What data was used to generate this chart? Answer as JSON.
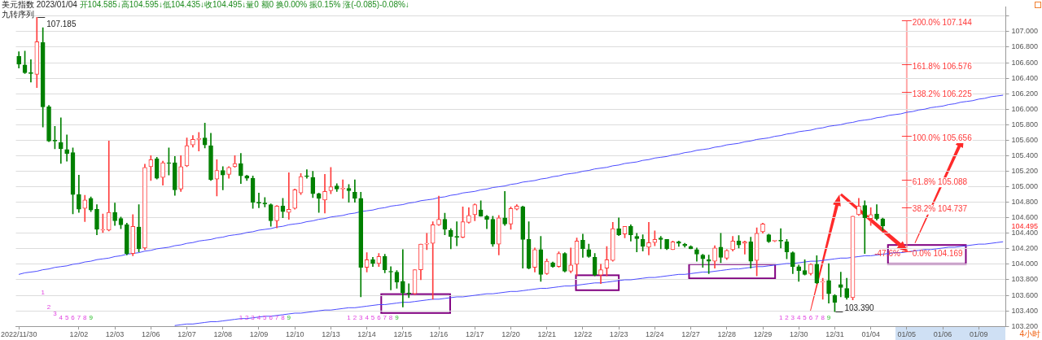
{
  "chart_data": {
    "type": "candlestick",
    "title": "美元指数 2023/01/04",
    "subtitle": "开104.585↓高104.595↓低104.435↓收104.495↓量0 额0 换0.00% 振0.15% 涨(-0.085)-0.08%↓",
    "annotations": [
      "九转序列",
      "4小时",
      "104.495",
      {
        "text": "-47.6%",
        "x": "01/05",
        "y": 104.169
      },
      "1",
      "2",
      "3",
      "4",
      "5",
      "6",
      "7",
      "8",
      "9",
      "1",
      "2",
      "3",
      "4",
      "5",
      "6",
      "7",
      "8",
      "9",
      "1",
      "2",
      "3",
      "4",
      "5",
      "6",
      "7",
      "8",
      "9",
      "1",
      "2",
      "3",
      "4",
      "5",
      "6",
      "7",
      "8",
      "9"
    ],
    "ref_lines": [
      {
        "axis": "y",
        "value": 107.144,
        "label": "200.0% 107.144",
        "color": "#ff3a3a"
      },
      {
        "axis": "y",
        "value": 106.576,
        "label": "161.8% 106.576",
        "color": "#ff3a3a"
      },
      {
        "axis": "y",
        "value": 106.225,
        "label": "138.2% 106.225",
        "color": "#ff3a3a"
      },
      {
        "axis": "y",
        "value": 105.656,
        "label": "100.0% 105.656",
        "color": "#ff3a3a"
      },
      {
        "axis": "y",
        "value": 105.088,
        "label": "61.8% 105.088",
        "color": "#ff3a3a"
      },
      {
        "axis": "y",
        "value": 104.737,
        "label": "38.2% 104.737",
        "color": "#ff3a3a"
      },
      {
        "axis": "y",
        "value": 104.169,
        "label": "0.0% 104.169",
        "color": "#ff3a3a"
      }
    ],
    "categories": [
      "2022/11/30",
      null,
      null,
      null,
      null,
      null,
      null,
      null,
      null,
      null,
      "12/02",
      null,
      null,
      null,
      null,
      null,
      "12/03",
      null,
      null,
      null,
      null,
      null,
      "12/06",
      null,
      null,
      null,
      null,
      null,
      "12/07",
      null,
      null,
      null,
      null,
      null,
      "12/08",
      null,
      null,
      null,
      null,
      null,
      "12/09",
      null,
      null,
      null,
      null,
      null,
      "12/10",
      null,
      null,
      null,
      null,
      null,
      "12/13",
      null,
      null,
      null,
      null,
      null,
      "12/14",
      null,
      null,
      null,
      null,
      null,
      "12/15",
      null,
      null,
      null,
      null,
      null,
      "12/16",
      null,
      null,
      null,
      null,
      null,
      "12/17",
      null,
      null,
      null,
      null,
      null,
      "12/20",
      null,
      null,
      null,
      null,
      null,
      "12/21",
      null,
      null,
      null,
      null,
      null,
      "12/22",
      null,
      null,
      null,
      null,
      null,
      "12/23",
      null,
      null,
      null,
      null,
      null,
      "12/24",
      null,
      null,
      null,
      null,
      null,
      "12/27",
      null,
      null,
      null,
      null,
      null,
      "12/28",
      null,
      null,
      null,
      null,
      null,
      "12/29",
      null,
      null,
      null,
      null,
      null,
      "12/30",
      null,
      null,
      null,
      null,
      null,
      "12/31",
      null,
      null,
      null,
      null,
      null,
      "01/04",
      null,
      null,
      null,
      null,
      null,
      "01/05",
      null,
      null,
      null,
      null,
      null,
      "01/06",
      null,
      null,
      null,
      null,
      null,
      "01/09",
      null,
      null,
      null,
      null
    ],
    "ohlc": [
      [
        106.68,
        106.74,
        106.53,
        106.58
      ],
      [
        106.57,
        106.75,
        106.46,
        106.47
      ],
      [
        106.47,
        106.64,
        106.35,
        106.46
      ],
      [
        106.45,
        107.185,
        106.28,
        106.87
      ],
      [
        106.86,
        107.05,
        105.77,
        106.03
      ],
      [
        106.03,
        106.05,
        105.58,
        105.59
      ],
      [
        105.6,
        105.78,
        105.49,
        105.59
      ],
      [
        105.57,
        105.89,
        105.3,
        105.49
      ],
      [
        105.48,
        105.67,
        105.33,
        105.43
      ],
      [
        105.44,
        105.5,
        104.65,
        104.9
      ],
      [
        104.9,
        105.15,
        104.67,
        104.71
      ],
      [
        104.72,
        104.89,
        104.55,
        104.83
      ],
      [
        104.85,
        104.87,
        104.68,
        104.7
      ],
      [
        104.71,
        104.77,
        104.38,
        104.45
      ],
      [
        104.44,
        104.65,
        104.41,
        104.45
      ],
      [
        104.44,
        105.59,
        104.43,
        104.67
      ],
      [
        104.67,
        104.79,
        104.5,
        104.56
      ],
      [
        104.59,
        104.61,
        104.46,
        104.51
      ],
      [
        104.51,
        104.53,
        104.12,
        104.14
      ],
      [
        104.14,
        104.64,
        104.11,
        104.49
      ],
      [
        104.48,
        104.77,
        104.16,
        104.2
      ],
      [
        104.21,
        105.29,
        104.19,
        105.25
      ],
      [
        105.26,
        105.4,
        105.08,
        105.35
      ],
      [
        105.36,
        105.38,
        105.1,
        105.11
      ],
      [
        105.12,
        105.33,
        105.02,
        105.31
      ],
      [
        105.31,
        105.5,
        105.15,
        105.3
      ],
      [
        105.31,
        105.39,
        104.89,
        104.96
      ],
      [
        104.97,
        105.4,
        104.94,
        105.26
      ],
      [
        105.27,
        105.63,
        105.26,
        105.53
      ],
      [
        105.54,
        105.66,
        105.51,
        105.61
      ],
      [
        105.61,
        105.7,
        105.46,
        105.62
      ],
      [
        105.63,
        105.82,
        105.5,
        105.54
      ],
      [
        105.53,
        105.69,
        105.08,
        105.09
      ],
      [
        105.1,
        105.35,
        104.88,
        105.21
      ],
      [
        105.21,
        105.26,
        104.96,
        105.15
      ],
      [
        105.16,
        105.26,
        105.11,
        105.25
      ],
      [
        105.26,
        105.4,
        105.25,
        105.3
      ],
      [
        105.3,
        105.43,
        105.04,
        105.14
      ],
      [
        105.14,
        105.15,
        105.08,
        105.11
      ],
      [
        105.11,
        105.14,
        104.72,
        104.8
      ],
      [
        104.8,
        104.92,
        104.73,
        104.79
      ],
      [
        104.79,
        104.86,
        104.74,
        104.78
      ],
      [
        104.77,
        104.78,
        104.49,
        104.56
      ],
      [
        104.56,
        104.76,
        104.47,
        104.75
      ],
      [
        104.75,
        104.85,
        104.6,
        104.68
      ],
      [
        104.67,
        105.18,
        104.58,
        104.71
      ],
      [
        104.72,
        104.97,
        104.71,
        104.96
      ],
      [
        104.92,
        105.17,
        104.9,
        105.13
      ],
      [
        105.14,
        105.22,
        105.11,
        105.13
      ],
      [
        105.12,
        105.2,
        104.86,
        104.91
      ],
      [
        104.91,
        104.92,
        104.67,
        104.85
      ],
      [
        104.83,
        105.16,
        104.66,
        104.94
      ],
      [
        104.95,
        105.25,
        104.91,
        105
      ],
      [
        105.01,
        105.04,
        104.94,
        104.97
      ],
      [
        104.97,
        105.09,
        104.85,
        104.98
      ],
      [
        104.98,
        105.03,
        104.8,
        104.95
      ],
      [
        104.93,
        105.09,
        104.8,
        104.85
      ],
      [
        104.85,
        104.93,
        103.58,
        103.96
      ],
      [
        103.96,
        104.15,
        103.9,
        104.06
      ],
      [
        104.06,
        104.09,
        103.97,
        104.01
      ],
      [
        104.01,
        104.14,
        103.97,
        104.1
      ],
      [
        104.1,
        104.13,
        103.89,
        103.93
      ],
      [
        103.91,
        103.97,
        103.67,
        103.9
      ],
      [
        103.9,
        103.92,
        103.69,
        103.77
      ],
      [
        103.78,
        104.19,
        103.45,
        103.63
      ],
      [
        103.63,
        103.75,
        103.57,
        103.62
      ],
      [
        103.62,
        103.93,
        103.61,
        103.93
      ],
      [
        103.93,
        104.26,
        103.8,
        104.26
      ],
      [
        104.26,
        104.4,
        104.19,
        104.27
      ],
      [
        104.27,
        104.55,
        103.55,
        104.51
      ],
      [
        104.51,
        104.88,
        104.5,
        104.58
      ],
      [
        104.58,
        104.66,
        104.38,
        104.45
      ],
      [
        104.44,
        104.46,
        104.2,
        104.36
      ],
      [
        104.36,
        104.55,
        104.24,
        104.35
      ],
      [
        104.35,
        104.74,
        104.34,
        104.55
      ],
      [
        104.54,
        104.73,
        104.53,
        104.63
      ],
      [
        104.64,
        104.78,
        104.56,
        104.77
      ],
      [
        104.7,
        104.82,
        104.62,
        104.62
      ],
      [
        104.62,
        104.63,
        104.46,
        104.58
      ],
      [
        104.58,
        104.62,
        104.23,
        104.26
      ],
      [
        104.26,
        104.63,
        104.12,
        104.6
      ],
      [
        104.6,
        104.94,
        104.5,
        104.52
      ],
      [
        104.52,
        104.74,
        104.45,
        104.72
      ],
      [
        104.71,
        104.77,
        104.7,
        104.75
      ],
      [
        104.74,
        104.75,
        103.95,
        104.32
      ],
      [
        104.32,
        104.55,
        103.94,
        103.95
      ],
      [
        103.96,
        104.21,
        103.9,
        104.19
      ],
      [
        104.19,
        104.36,
        103.78,
        103.87
      ],
      [
        103.88,
        104.07,
        103.87,
        104.04
      ],
      [
        104.02,
        104.03,
        103.96,
        103.97
      ],
      [
        103.97,
        104.16,
        103.96,
        104.14
      ],
      [
        104.14,
        104.15,
        103.9,
        103.91
      ],
      [
        103.91,
        104.21,
        103.89,
        103.99
      ],
      [
        104,
        104.34,
        103.85,
        104.3
      ],
      [
        104.31,
        104.39,
        104.09,
        104.2
      ],
      [
        104.19,
        104.26,
        104.09,
        104.1
      ],
      [
        104.09,
        104.14,
        103.85,
        103.86
      ],
      [
        103.86,
        104,
        103.75,
        103.93
      ],
      [
        103.95,
        104.23,
        103.85,
        104.06
      ],
      [
        104.05,
        104.54,
        104.04,
        104.46
      ],
      [
        104.46,
        104.6,
        104.37,
        104.38
      ],
      [
        104.39,
        104.49,
        104.34,
        104.49
      ],
      [
        104.49,
        104.51,
        104.3,
        104.38
      ],
      [
        104.36,
        104.4,
        104.16,
        104.33
      ],
      [
        104.32,
        104.38,
        104.17,
        104.23
      ],
      [
        104.22,
        104.54,
        104.12,
        104.28
      ],
      [
        104.28,
        104.43,
        104.24,
        104.32
      ],
      [
        104.34,
        104.36,
        104.2,
        104.32
      ],
      [
        104.32,
        104.32,
        104.19,
        104.2
      ],
      [
        104.19,
        104.3,
        104.19,
        104.29
      ],
      [
        104.29,
        104.3,
        104.23,
        104.27
      ],
      [
        104.26,
        104.27,
        104.22,
        104.24
      ],
      [
        104.23,
        104.24,
        104.2,
        104.2
      ],
      [
        104.19,
        104.21,
        104.04,
        104.13
      ],
      [
        104.12,
        104.13,
        103.96,
        104.07
      ],
      [
        104.06,
        104.12,
        103.88,
        104.04
      ],
      [
        104.04,
        104.24,
        103.95,
        104.21
      ],
      [
        104.22,
        104.4,
        104.02,
        104.09
      ],
      [
        104.08,
        104.19,
        104.06,
        104.18
      ],
      [
        104.19,
        104.36,
        104.17,
        104.3
      ],
      [
        104.3,
        104.37,
        104.21,
        104.25
      ],
      [
        104.27,
        104.3,
        104.13,
        104.29
      ],
      [
        104.29,
        104.35,
        103.95,
        104.04
      ],
      [
        104.05,
        104.47,
        103.85,
        104.4
      ],
      [
        104.42,
        104.53,
        104.4,
        104.52
      ],
      [
        104.38,
        104.39,
        104.28,
        104.29
      ],
      [
        104.3,
        104.31,
        104.29,
        104.31
      ],
      [
        104.31,
        104.46,
        104.21,
        104.3
      ],
      [
        104.29,
        104.32,
        104.07,
        104.16
      ],
      [
        104.15,
        104.16,
        103.88,
        103.97
      ],
      [
        103.97,
        103.99,
        103.78,
        103.92
      ],
      [
        103.92,
        104.06,
        103.86,
        103.87
      ],
      [
        103.88,
        104.01,
        103.86,
        104
      ],
      [
        104,
        104.11,
        103.75,
        103.76
      ],
      [
        103.77,
        103.82,
        103.55,
        103.78
      ],
      [
        103.79,
        104.01,
        103.5,
        103.62
      ],
      [
        103.6,
        103.61,
        103.39,
        103.51
      ],
      [
        103.74,
        103.9,
        103.58,
        103.7
      ],
      [
        103.69,
        103.82,
        103.55,
        103.57
      ],
      [
        103.57,
        104.62,
        103.54,
        104.62
      ],
      [
        104.64,
        104.85,
        104.63,
        104.75
      ],
      [
        104.76,
        104.82,
        104.14,
        104.6
      ],
      [
        104.59,
        104.73,
        104.5,
        104.64
      ],
      [
        104.65,
        104.77,
        104.57,
        104.59
      ],
      [
        104.585,
        104.595,
        104.435,
        104.495
      ],
      null,
      null,
      null,
      null,
      null,
      null,
      null,
      null,
      null,
      null,
      null,
      null,
      null,
      null,
      null,
      null,
      null,
      null,
      null,
      null
    ],
    "colors": [
      "#008000",
      "#008000",
      "#008000",
      "#ff3c3c",
      "#008000",
      "#008000",
      "#008000",
      "#008000",
      "#008000",
      "#008000",
      "#008000",
      "#ff3c3c",
      "#008000",
      "#008000",
      "#ff3c3c",
      "#ff3c3c",
      "#008000",
      "#008000",
      "#008000",
      "#ff3c3c",
      "#008000",
      "#ff3c3c",
      "#ff3c3c",
      "#008000",
      "#ff3c3c",
      "#008000",
      "#008000",
      "#ff3c3c",
      "#ff3c3c",
      "#ff3c3c",
      "#ff3c3c",
      "#008000",
      "#008000",
      "#ff3c3c",
      "#008000",
      "#ff3c3c",
      "#ff3c3c",
      "#008000",
      "#008000",
      "#008000",
      "#008000",
      "#008000",
      "#008000",
      "#ff3c3c",
      "#008000",
      "#ff3c3c",
      "#ff3c3c",
      "#ff3c3c",
      "#008000",
      "#008000",
      "#008000",
      "#ff3c3c",
      "#ff3c3c",
      "#008000",
      "#ff3c3c",
      "#008000",
      "#008000",
      "#008000",
      "#ff3c3c",
      "#008000",
      "#ff3c3c",
      "#008000",
      "#008000",
      "#008000",
      "#008000",
      "#008000",
      "#ff3c3c",
      "#ff3c3c",
      "#ff3c3c",
      "#ff3c3c",
      "#ff3c3c",
      "#008000",
      "#008000",
      "#008000",
      "#ff3c3c",
      "#ff3c3c",
      "#ff3c3c",
      "#008000",
      "#008000",
      "#008000",
      "#ff3c3c",
      "#008000",
      "#ff3c3c",
      "#ff3c3c",
      "#008000",
      "#008000",
      "#ff3c3c",
      "#008000",
      "#ff3c3c",
      "#008000",
      "#ff3c3c",
      "#008000",
      "#ff3c3c",
      "#ff3c3c",
      "#008000",
      "#008000",
      "#008000",
      "#ff3c3c",
      "#ff3c3c",
      "#ff3c3c",
      "#008000",
      "#ff3c3c",
      "#008000",
      "#008000",
      "#008000",
      "#ff3c3c",
      "#ff3c3c",
      "#008000",
      "#008000",
      "#ff3c3c",
      "#008000",
      "#008000",
      "#008000",
      "#008000",
      "#008000",
      "#008000",
      "#ff3c3c",
      "#008000",
      "#ff3c3c",
      "#ff3c3c",
      "#008000",
      "#ff3c3c",
      "#008000",
      "#ff3c3c",
      "#ff3c3c",
      "#008000",
      "#ff3c3c",
      "#008000",
      "#008000",
      "#008000",
      "#008000",
      "#008000",
      "#ff3c3c",
      "#008000",
      "#ff3c3c",
      "#008000",
      "#008000",
      "#008000",
      "#008000",
      "#ff3c3c",
      "#ff3c3c",
      "#008000",
      "#ff3c3c",
      "#008000",
      "#008000",
      null,
      null,
      null,
      null,
      null,
      null,
      null,
      null,
      null,
      null,
      null,
      null,
      null,
      null,
      null,
      null,
      null,
      null,
      null,
      null
    ],
    "value_labels": [
      null,
      null,
      null,
      "107.185",
      null,
      null,
      null,
      null,
      null,
      null,
      null,
      null,
      null,
      null,
      null,
      null,
      null,
      null,
      null,
      null,
      null,
      null,
      null,
      null,
      null,
      null,
      null,
      null,
      null,
      null,
      null,
      null,
      null,
      null,
      null,
      null,
      null,
      null,
      null,
      null,
      null,
      null,
      null,
      null,
      null,
      null,
      null,
      null,
      null,
      null,
      null,
      null,
      null,
      null,
      null,
      null,
      null,
      null,
      null,
      null,
      null,
      null,
      null,
      null,
      null,
      null,
      null,
      null,
      null,
      null,
      null,
      null,
      null,
      null,
      null,
      null,
      null,
      null,
      null,
      null,
      null,
      null,
      null,
      null,
      null,
      null,
      null,
      null,
      null,
      null,
      null,
      null,
      null,
      null,
      null,
      null,
      null,
      null,
      null,
      null,
      null,
      null,
      null,
      null,
      null,
      null,
      null,
      null,
      null,
      null,
      null,
      null,
      null,
      null,
      null,
      null,
      null,
      null,
      null,
      null,
      null,
      null,
      null,
      null,
      null,
      null,
      null,
      null,
      null,
      null,
      null,
      null,
      null,
      null,
      null,
      null,
      "103.390",
      null,
      null,
      null,
      null,
      null,
      null,
      null,
      null,
      null,
      null,
      null,
      null,
      null,
      null,
      null,
      null,
      null,
      null,
      null,
      null,
      null,
      null,
      null,
      null,
      null,
      null,
      null,
      null
    ],
    "ylim": [
      103.2,
      107.32
    ],
    "yticks": [
      {
        "value": 103.2,
        "label": "103.200"
      },
      {
        "value": 103.4,
        "label": "103.400"
      },
      {
        "value": 103.6,
        "label": "103.600"
      },
      {
        "value": 103.8,
        "label": "103.800"
      },
      {
        "value": 104,
        "label": "104.000"
      },
      {
        "value": 104.2,
        "label": "104.200"
      },
      {
        "value": 104.4,
        "label": "104.400"
      },
      {
        "value": 104.6,
        "label": "104.600"
      },
      {
        "value": 104.8,
        "label": "104.800"
      },
      {
        "value": 105,
        "label": "105.000"
      },
      {
        "value": 105.2,
        "label": "105.200"
      },
      {
        "value": 105.4,
        "label": "105.400"
      },
      {
        "value": 105.6,
        "label": "105.600"
      },
      {
        "value": 105.8,
        "label": "105.800"
      },
      {
        "value": 106,
        "label": "106.000"
      },
      {
        "value": 106.2,
        "label": "106.200"
      },
      {
        "value": 106.4,
        "label": "106.400"
      },
      {
        "value": 106.6,
        "label": "106.600"
      },
      {
        "value": 106.8,
        "label": "106.800"
      },
      {
        "value": 107,
        "label": "107.000"
      },
      {
        "value": 107.2,
        "label": null
      }
    ],
    "grid": "y",
    "series": [
      {
        "type": "line",
        "color": "#4b4bff",
        "values": [
          103.87,
          103.89,
          103.9,
          103.91,
          103.93,
          103.94,
          103.96,
          103.97,
          103.98,
          104,
          104.01,
          104.03,
          104.04,
          104.06,
          104.07,
          104.08,
          104.1,
          104.11,
          104.13,
          104.14,
          104.15,
          104.17,
          104.18,
          104.2,
          104.21,
          104.22,
          104.24,
          104.25,
          104.27,
          104.28,
          104.3,
          104.31,
          104.32,
          104.34,
          104.35,
          104.37,
          104.38,
          104.39,
          104.41,
          104.42,
          104.44,
          104.45,
          104.46,
          104.48,
          104.49,
          104.51,
          104.52,
          104.53,
          104.55,
          104.56,
          104.58,
          104.59,
          104.61,
          104.62,
          104.63,
          104.65,
          104.66,
          104.68,
          104.69,
          104.7,
          104.72,
          104.73,
          104.75,
          104.76,
          104.77,
          104.79,
          104.8,
          104.82,
          104.83,
          104.84,
          104.86,
          104.87,
          104.89,
          104.9,
          104.92,
          104.93,
          104.94,
          104.96,
          104.97,
          104.99,
          105,
          105.01,
          105.03,
          105.04,
          105.06,
          105.07,
          105.08,
          105.1,
          105.11,
          105.13,
          105.14,
          105.16,
          105.17,
          105.18,
          105.2,
          105.21,
          105.23,
          105.24,
          105.25,
          105.27,
          105.28,
          105.3,
          105.31,
          105.32,
          105.34,
          105.35,
          105.37,
          105.38,
          105.39,
          105.41,
          105.42,
          105.44,
          105.45,
          105.47,
          105.48,
          105.49,
          105.51,
          105.52,
          105.54,
          105.55,
          105.56,
          105.58,
          105.59,
          105.61,
          105.62,
          105.63,
          105.65,
          105.66,
          105.68,
          105.69,
          105.71,
          105.72,
          105.73,
          105.75,
          105.76,
          105.78,
          105.79,
          105.8,
          105.82,
          105.83,
          105.85,
          105.86,
          105.87,
          105.89,
          105.9,
          105.92,
          105.93,
          105.94,
          105.96,
          105.97,
          105.99,
          106,
          106.02,
          106.03,
          106.04,
          106.06,
          106.07,
          106.09,
          106.1,
          106.11,
          106.13,
          106.14,
          106.16,
          106.17,
          106.18
        ]
      },
      {
        "type": "line",
        "color": "#4b4bff",
        "values": [
          null,
          null,
          null,
          null,
          null,
          null,
          null,
          null,
          null,
          null,
          null,
          null,
          null,
          null,
          null,
          null,
          null,
          null,
          null,
          null,
          null,
          null,
          null,
          null,
          null,
          null,
          103.21,
          103.22,
          103.23,
          103.23,
          103.24,
          103.25,
          103.26,
          103.26,
          103.27,
          103.28,
          103.29,
          103.3,
          103.3,
          103.31,
          103.32,
          103.33,
          103.33,
          103.34,
          103.35,
          103.36,
          103.37,
          103.37,
          103.38,
          103.39,
          103.4,
          103.41,
          103.41,
          103.42,
          103.43,
          103.44,
          103.44,
          103.45,
          103.46,
          103.47,
          103.48,
          103.48,
          103.49,
          103.5,
          103.51,
          103.51,
          103.52,
          103.53,
          103.54,
          103.55,
          103.55,
          103.56,
          103.57,
          103.58,
          103.58,
          103.59,
          103.6,
          103.61,
          103.62,
          103.62,
          103.63,
          103.64,
          103.65,
          103.65,
          103.66,
          103.67,
          103.68,
          103.69,
          103.69,
          103.7,
          103.71,
          103.72,
          103.72,
          103.73,
          103.74,
          103.75,
          103.76,
          103.76,
          103.77,
          103.78,
          103.79,
          103.8,
          103.8,
          103.81,
          103.82,
          103.83,
          103.83,
          103.84,
          103.85,
          103.86,
          103.87,
          103.87,
          103.88,
          103.89,
          103.9,
          103.9,
          103.91,
          103.92,
          103.93,
          103.94,
          103.94,
          103.95,
          103.96,
          103.97,
          103.97,
          103.98,
          103.99,
          104,
          104.01,
          104.01,
          104.02,
          104.03,
          104.04,
          104.04,
          104.05,
          104.06,
          104.07,
          104.08,
          104.08,
          104.09,
          104.1,
          104.11,
          104.11,
          104.12,
          104.13,
          104.14,
          104.15,
          104.15,
          104.16,
          104.17,
          104.18,
          104.19,
          104.19,
          104.2,
          104.21,
          104.22,
          104.22,
          104.23,
          104.24,
          104.25,
          104.26,
          104.26,
          104.27,
          104.28,
          104.29
        ]
      }
    ]
  }
}
